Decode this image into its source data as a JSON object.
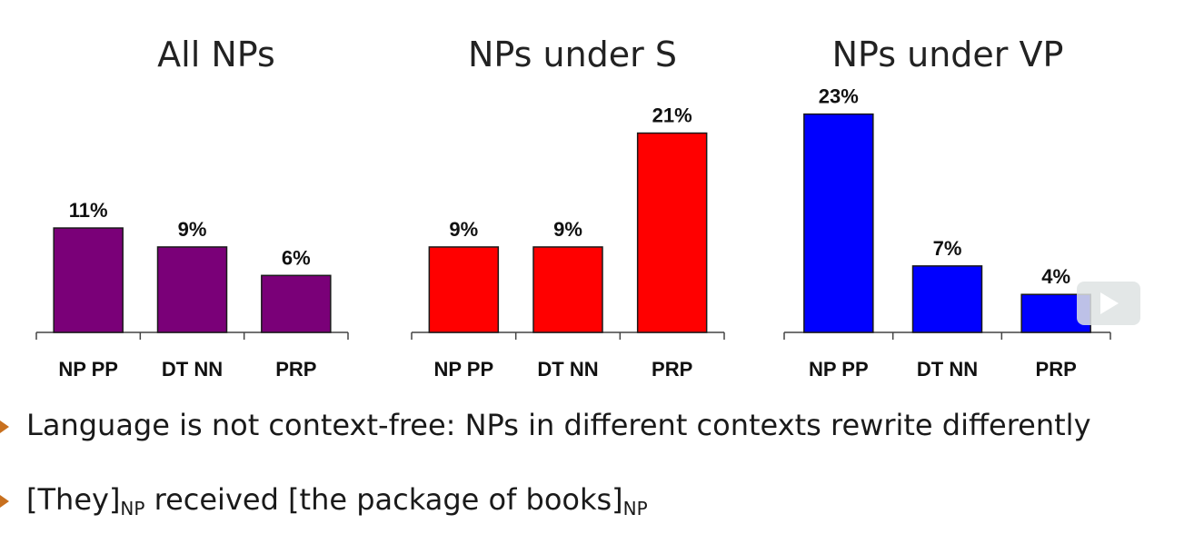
{
  "chart_data": [
    {
      "type": "bar",
      "title": "All NPs",
      "categories": [
        "NP PP",
        "DT NN",
        "PRP"
      ],
      "values": [
        11,
        9,
        6
      ],
      "data_labels": [
        "11%",
        "9%",
        "6%"
      ],
      "ylim": [
        0,
        25
      ],
      "color": "#7a0078"
    },
    {
      "type": "bar",
      "title": "NPs under S",
      "categories": [
        "NP PP",
        "DT NN",
        "PRP"
      ],
      "values": [
        9,
        9,
        21
      ],
      "data_labels": [
        "9%",
        "9%",
        "21%"
      ],
      "ylim": [
        0,
        25
      ],
      "color": "#ff0000"
    },
    {
      "type": "bar",
      "title": "NPs under VP",
      "categories": [
        "NP PP",
        "DT NN",
        "PRP"
      ],
      "values": [
        23,
        7,
        4
      ],
      "data_labels": [
        "23%",
        "7%",
        "4%"
      ],
      "ylim": [
        0,
        25
      ],
      "color": "#0000ff"
    }
  ],
  "bullets": [
    {
      "text": "Language is not context-free: NPs in different contexts rewrite differently"
    },
    {
      "parts": {
        "a": "[They]",
        "a_sub": "NP",
        "b": " received [the package of books]",
        "b_sub": "NP"
      }
    }
  ],
  "video_overlay": {
    "icon": "play-icon"
  },
  "colors": {
    "bullet_marker": "#c8701e"
  }
}
